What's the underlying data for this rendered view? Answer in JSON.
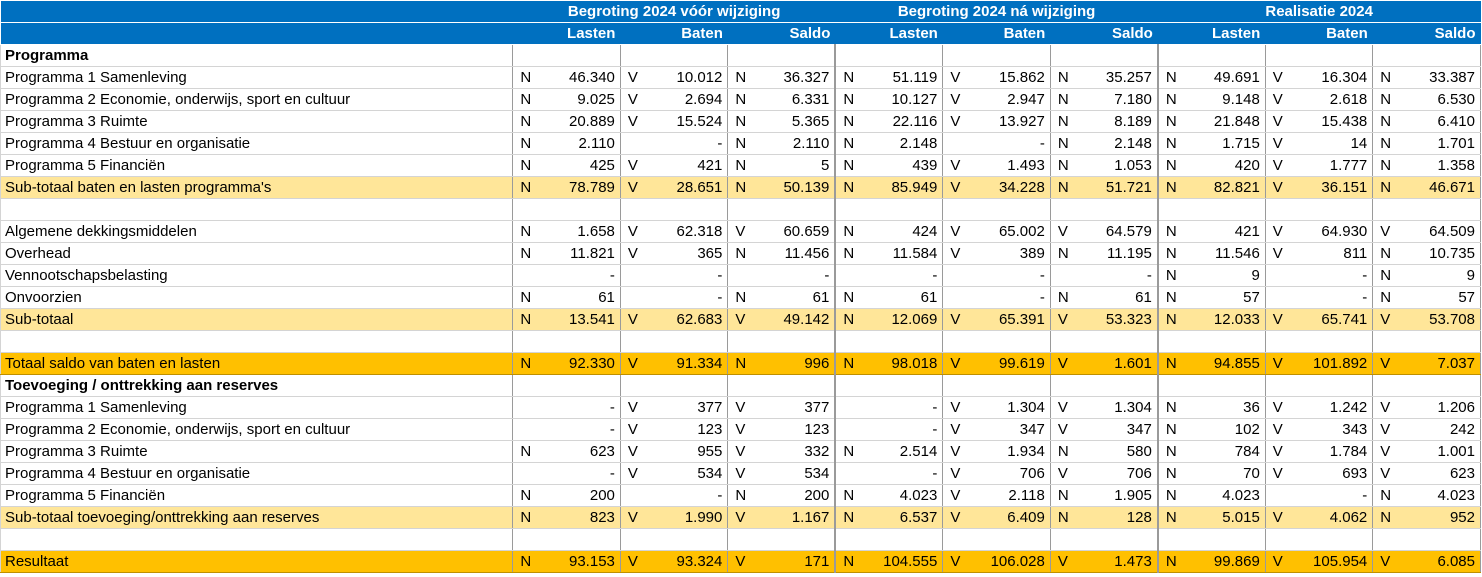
{
  "header": {
    "groups": [
      "Begroting 2024 vóór wijziging",
      "Begroting 2024 ná wijziging",
      "Realisatie 2024"
    ],
    "columns": [
      "Lasten",
      "Baten",
      "Saldo",
      "Lasten",
      "Baten",
      "Saldo",
      "Lasten",
      "Baten",
      "Saldo"
    ]
  },
  "colors": {
    "header_bg": "#0070c0",
    "subtotal_bg": "#ffe699",
    "total_bg": "#ffc000"
  },
  "rows": [
    {
      "label": "Programma",
      "type": "section",
      "cells": []
    },
    {
      "label": "Programma 1 Samenleving",
      "type": "data",
      "cells": [
        [
          "N",
          "46.340"
        ],
        [
          "V",
          "10.012"
        ],
        [
          "N",
          "36.327"
        ],
        [
          "N",
          "51.119"
        ],
        [
          "V",
          "15.862"
        ],
        [
          "N",
          "35.257"
        ],
        [
          "N",
          "49.691"
        ],
        [
          "V",
          "16.304"
        ],
        [
          "N",
          "33.387"
        ]
      ]
    },
    {
      "label": "Programma 2 Economie, onderwijs, sport en cultuur",
      "type": "data",
      "cells": [
        [
          "N",
          "9.025"
        ],
        [
          "V",
          "2.694"
        ],
        [
          "N",
          "6.331"
        ],
        [
          "N",
          "10.127"
        ],
        [
          "V",
          "2.947"
        ],
        [
          "N",
          "7.180"
        ],
        [
          "N",
          "9.148"
        ],
        [
          "V",
          "2.618"
        ],
        [
          "N",
          "6.530"
        ]
      ]
    },
    {
      "label": "Programma 3 Ruimte",
      "type": "data",
      "cells": [
        [
          "N",
          "20.889"
        ],
        [
          "V",
          "15.524"
        ],
        [
          "N",
          "5.365"
        ],
        [
          "N",
          "22.116"
        ],
        [
          "V",
          "13.927"
        ],
        [
          "N",
          "8.189"
        ],
        [
          "N",
          "21.848"
        ],
        [
          "V",
          "15.438"
        ],
        [
          "N",
          "6.410"
        ]
      ]
    },
    {
      "label": "Programma 4 Bestuur en organisatie",
      "type": "data",
      "cells": [
        [
          "N",
          "2.110"
        ],
        [
          "",
          "-"
        ],
        [
          "N",
          "2.110"
        ],
        [
          "N",
          "2.148"
        ],
        [
          "",
          "-"
        ],
        [
          "N",
          "2.148"
        ],
        [
          "N",
          "1.715"
        ],
        [
          "V",
          "14"
        ],
        [
          "N",
          "1.701"
        ]
      ]
    },
    {
      "label": "Programma 5 Financiën",
      "type": "data",
      "cells": [
        [
          "N",
          "425"
        ],
        [
          "V",
          "421"
        ],
        [
          "N",
          "5"
        ],
        [
          "N",
          "439"
        ],
        [
          "V",
          "1.493"
        ],
        [
          "N",
          "1.053"
        ],
        [
          "N",
          "420"
        ],
        [
          "V",
          "1.777"
        ],
        [
          "N",
          "1.358"
        ]
      ]
    },
    {
      "label": "Sub-totaal baten en lasten programma's",
      "type": "subtotal",
      "cells": [
        [
          "N",
          "78.789"
        ],
        [
          "V",
          "28.651"
        ],
        [
          "N",
          "50.139"
        ],
        [
          "N",
          "85.949"
        ],
        [
          "V",
          "34.228"
        ],
        [
          "N",
          "51.721"
        ],
        [
          "N",
          "82.821"
        ],
        [
          "V",
          "36.151"
        ],
        [
          "N",
          "46.671"
        ]
      ]
    },
    {
      "label": "",
      "type": "spacer",
      "cells": []
    },
    {
      "label": "Algemene dekkingsmiddelen",
      "type": "data",
      "cells": [
        [
          "N",
          "1.658"
        ],
        [
          "V",
          "62.318"
        ],
        [
          "V",
          "60.659"
        ],
        [
          "N",
          "424"
        ],
        [
          "V",
          "65.002"
        ],
        [
          "V",
          "64.579"
        ],
        [
          "N",
          "421"
        ],
        [
          "V",
          "64.930"
        ],
        [
          "V",
          "64.509"
        ]
      ]
    },
    {
      "label": "Overhead",
      "type": "data",
      "cells": [
        [
          "N",
          "11.821"
        ],
        [
          "V",
          "365"
        ],
        [
          "N",
          "11.456"
        ],
        [
          "N",
          "11.584"
        ],
        [
          "V",
          "389"
        ],
        [
          "N",
          "11.195"
        ],
        [
          "N",
          "11.546"
        ],
        [
          "V",
          "811"
        ],
        [
          "N",
          "10.735"
        ]
      ]
    },
    {
      "label": "Vennootschapsbelasting",
      "type": "data",
      "cells": [
        [
          "",
          "-"
        ],
        [
          "",
          "-"
        ],
        [
          "",
          "-"
        ],
        [
          "",
          "-"
        ],
        [
          "",
          "-"
        ],
        [
          "",
          "-"
        ],
        [
          "N",
          "9"
        ],
        [
          "",
          "-"
        ],
        [
          "N",
          "9"
        ]
      ]
    },
    {
      "label": "Onvoorzien",
      "type": "data",
      "cells": [
        [
          "N",
          "61"
        ],
        [
          "",
          "-"
        ],
        [
          "N",
          "61"
        ],
        [
          "N",
          "61"
        ],
        [
          "",
          "-"
        ],
        [
          "N",
          "61"
        ],
        [
          "N",
          "57"
        ],
        [
          "",
          "-"
        ],
        [
          "N",
          "57"
        ]
      ]
    },
    {
      "label": "Sub-totaal",
      "type": "subtotal",
      "cells": [
        [
          "N",
          "13.541"
        ],
        [
          "V",
          "62.683"
        ],
        [
          "V",
          "49.142"
        ],
        [
          "N",
          "12.069"
        ],
        [
          "V",
          "65.391"
        ],
        [
          "V",
          "53.323"
        ],
        [
          "N",
          "12.033"
        ],
        [
          "V",
          "65.741"
        ],
        [
          "V",
          "53.708"
        ]
      ]
    },
    {
      "label": "",
      "type": "spacer",
      "cells": []
    },
    {
      "label": "Totaal saldo van baten en lasten",
      "type": "total",
      "cells": [
        [
          "N",
          "92.330"
        ],
        [
          "V",
          "91.334"
        ],
        [
          "N",
          "996"
        ],
        [
          "N",
          "98.018"
        ],
        [
          "V",
          "99.619"
        ],
        [
          "V",
          "1.601"
        ],
        [
          "N",
          "94.855"
        ],
        [
          "V",
          "101.892"
        ],
        [
          "V",
          "7.037"
        ]
      ]
    },
    {
      "label": "Toevoeging / onttrekking aan reserves",
      "type": "section",
      "cells": []
    },
    {
      "label": "Programma 1 Samenleving",
      "type": "data",
      "cells": [
        [
          "",
          "-"
        ],
        [
          "V",
          "377"
        ],
        [
          "V",
          "377"
        ],
        [
          "",
          "-"
        ],
        [
          "V",
          "1.304"
        ],
        [
          "V",
          "1.304"
        ],
        [
          "N",
          "36"
        ],
        [
          "V",
          "1.242"
        ],
        [
          "V",
          "1.206"
        ]
      ]
    },
    {
      "label": "Programma 2 Economie, onderwijs, sport en cultuur",
      "type": "data",
      "cells": [
        [
          "",
          "-"
        ],
        [
          "V",
          "123"
        ],
        [
          "V",
          "123"
        ],
        [
          "",
          "-"
        ],
        [
          "V",
          "347"
        ],
        [
          "V",
          "347"
        ],
        [
          "N",
          "102"
        ],
        [
          "V",
          "343"
        ],
        [
          "V",
          "242"
        ]
      ]
    },
    {
      "label": "Programma 3 Ruimte",
      "type": "data",
      "cells": [
        [
          "N",
          "623"
        ],
        [
          "V",
          "955"
        ],
        [
          "V",
          "332"
        ],
        [
          "N",
          "2.514"
        ],
        [
          "V",
          "1.934"
        ],
        [
          "N",
          "580"
        ],
        [
          "N",
          "784"
        ],
        [
          "V",
          "1.784"
        ],
        [
          "V",
          "1.001"
        ]
      ]
    },
    {
      "label": "Programma 4 Bestuur en organisatie",
      "type": "data",
      "cells": [
        [
          "",
          "-"
        ],
        [
          "V",
          "534"
        ],
        [
          "V",
          "534"
        ],
        [
          "",
          "-"
        ],
        [
          "V",
          "706"
        ],
        [
          "V",
          "706"
        ],
        [
          "N",
          "70"
        ],
        [
          "V",
          "693"
        ],
        [
          "V",
          "623"
        ]
      ]
    },
    {
      "label": "Programma 5 Financiën",
      "type": "data",
      "cells": [
        [
          "N",
          "200"
        ],
        [
          "",
          "-"
        ],
        [
          "N",
          "200"
        ],
        [
          "N",
          "4.023"
        ],
        [
          "V",
          "2.118"
        ],
        [
          "N",
          "1.905"
        ],
        [
          "N",
          "4.023"
        ],
        [
          "",
          "-"
        ],
        [
          "N",
          "4.023"
        ]
      ]
    },
    {
      "label": "Sub-totaal toevoeging/onttrekking aan reserves",
      "type": "subtotal",
      "cells": [
        [
          "N",
          "823"
        ],
        [
          "V",
          "1.990"
        ],
        [
          "V",
          "1.167"
        ],
        [
          "N",
          "6.537"
        ],
        [
          "V",
          "6.409"
        ],
        [
          "N",
          "128"
        ],
        [
          "N",
          "5.015"
        ],
        [
          "V",
          "4.062"
        ],
        [
          "N",
          "952"
        ]
      ]
    },
    {
      "label": "",
      "type": "spacer",
      "cells": []
    },
    {
      "label": "Resultaat",
      "type": "total",
      "cells": [
        [
          "N",
          "93.153"
        ],
        [
          "V",
          "93.324"
        ],
        [
          "V",
          "171"
        ],
        [
          "N",
          "104.555"
        ],
        [
          "V",
          "106.028"
        ],
        [
          "V",
          "1.473"
        ],
        [
          "N",
          "99.869"
        ],
        [
          "V",
          "105.954"
        ],
        [
          "V",
          "6.085"
        ]
      ]
    }
  ]
}
